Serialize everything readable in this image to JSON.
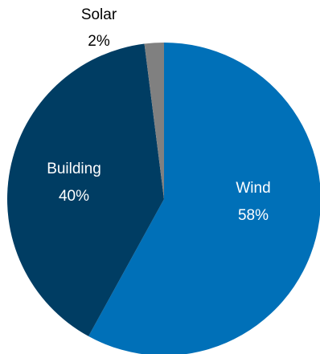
{
  "chart_data": {
    "type": "pie",
    "title": "",
    "slices": [
      {
        "label": "Wind",
        "value": 58,
        "value_label": "58%",
        "color": "#0070b8",
        "label_color": "#ffffff"
      },
      {
        "label": "Building",
        "value": 40,
        "value_label": "40%",
        "color": "#003d63",
        "label_color": "#ffffff"
      },
      {
        "label": "Solar",
        "value": 2,
        "value_label": "2%",
        "color": "#808080",
        "label_color": "#000000"
      }
    ],
    "start_angle_deg": 0,
    "direction": "clockwise",
    "legend": "none"
  }
}
